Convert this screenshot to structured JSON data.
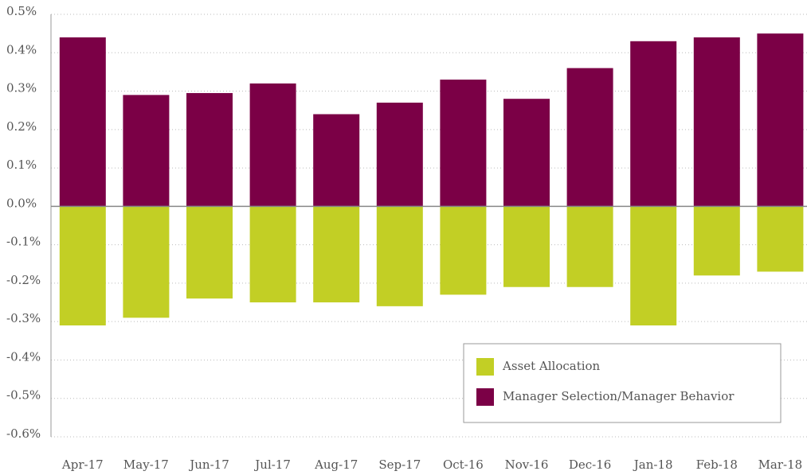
{
  "chart_data": {
    "type": "bar",
    "categories": [
      "Apr-17",
      "May-17",
      "Jun-17",
      "Jul-17",
      "Aug-17",
      "Sep-17",
      "Oct-16",
      "Nov-16",
      "Dec-16",
      "Jan-18",
      "Feb-18",
      "Mar-18"
    ],
    "series": [
      {
        "name": "Asset Allocation",
        "color": "#c2cf25",
        "values": [
          -0.31,
          -0.29,
          -0.24,
          -0.25,
          -0.25,
          -0.26,
          -0.23,
          -0.21,
          -0.21,
          -0.31,
          -0.18,
          -0.17
        ]
      },
      {
        "name": "Manager Selection/Manager Behavior",
        "color": "#7b0046",
        "values": [
          0.44,
          0.29,
          0.295,
          0.32,
          0.24,
          0.27,
          0.33,
          0.28,
          0.36,
          0.43,
          0.44,
          0.45
        ]
      }
    ],
    "ylim": [
      -0.6,
      0.5
    ],
    "yticks": [
      {
        "value": -0.6,
        "label": "-0.6%"
      },
      {
        "value": -0.5,
        "label": "-0.5%"
      },
      {
        "value": -0.4,
        "label": "-0.4%"
      },
      {
        "value": -0.3,
        "label": "-0.3%"
      },
      {
        "value": -0.2,
        "label": "-0.2%"
      },
      {
        "value": -0.1,
        "label": "-0.1%"
      },
      {
        "value": 0,
        "label": "0.0%"
      },
      {
        "value": 0.1,
        "label": "0.1%"
      },
      {
        "value": 0.2,
        "label": "0.2%"
      },
      {
        "value": 0.3,
        "label": "0.3%"
      },
      {
        "value": 0.4,
        "label": "0.4%"
      },
      {
        "value": 0.5,
        "label": "0.5%"
      }
    ],
    "grid": true,
    "legend": "lower right"
  }
}
